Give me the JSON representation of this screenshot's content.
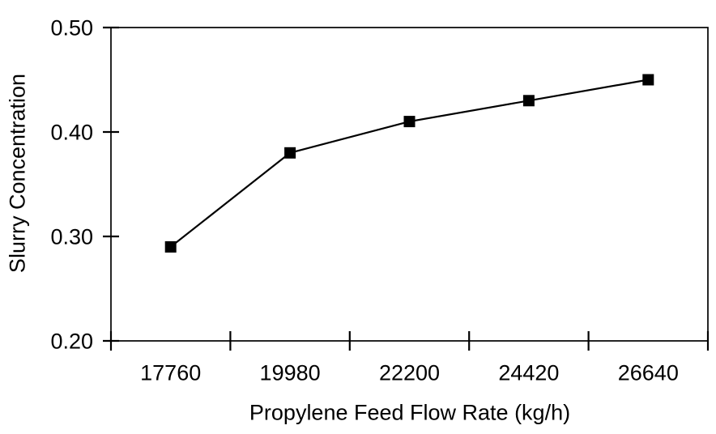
{
  "chart_data": {
    "type": "line",
    "title": "",
    "categories": [
      "17760",
      "19980",
      "22200",
      "24420",
      "26640"
    ],
    "values": [
      0.29,
      0.38,
      0.41,
      0.43,
      0.45
    ],
    "series": [
      {
        "name": "Slurry Concentration",
        "values": [
          0.29,
          0.38,
          0.41,
          0.43,
          0.45
        ]
      }
    ],
    "xlabel": "Propylene Feed Flow Rate (kg/h)",
    "ylabel": "Slurry Concentration",
    "ylim": [
      0.2,
      0.5
    ],
    "y_tick_labels": [
      "0.20",
      "0.30",
      "0.40",
      "0.50"
    ],
    "x_tick_style": "category-boundaries-crossing",
    "grid": false,
    "legend": false,
    "marker": "square",
    "colors": {
      "line": "#000000",
      "marker": "#000000",
      "axis": "#000000",
      "text": "#000000",
      "background": "#ffffff"
    }
  }
}
